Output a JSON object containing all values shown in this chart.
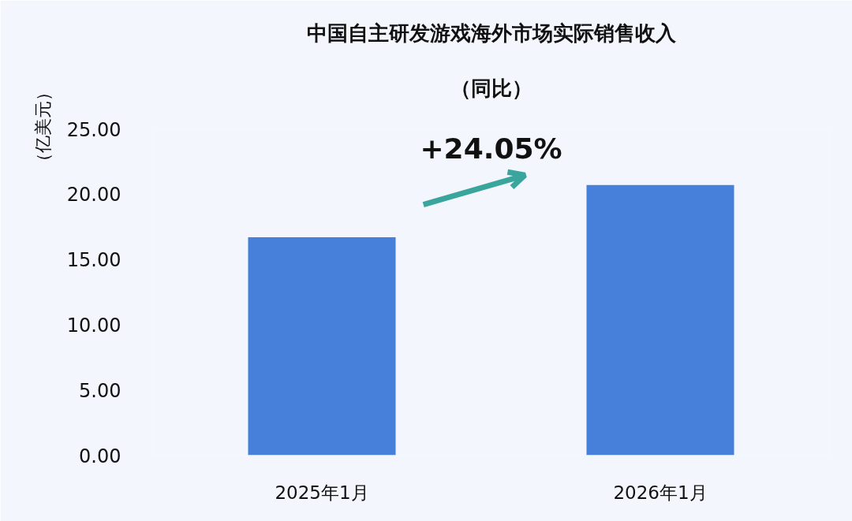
{
  "chart_data": {
    "type": "bar",
    "title": "中国自主研发游戏海外市场实际销售收入",
    "subtitle": "（同比）",
    "ylabel": "（亿美元）",
    "categories": [
      "2025年1月",
      "2026年1月"
    ],
    "values": [
      16.7,
      20.7
    ],
    "color": "#4780da",
    "ylim": [
      0,
      25
    ],
    "yticks": [
      {
        "value": 0,
        "label": "0.00"
      },
      {
        "value": 5,
        "label": "5.00"
      },
      {
        "value": 10,
        "label": "10.00"
      },
      {
        "value": 15,
        "label": "15.00"
      },
      {
        "value": 20,
        "label": "20.00"
      },
      {
        "value": 25,
        "label": "25.00"
      }
    ],
    "grid": false,
    "annotations": [
      "+24.05%"
    ]
  }
}
